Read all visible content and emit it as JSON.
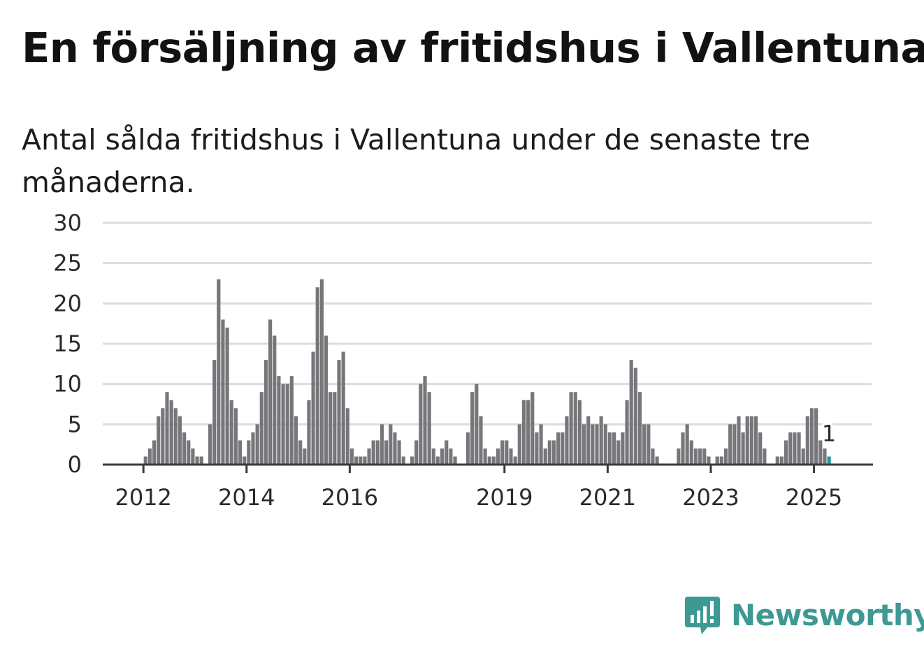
{
  "title": "En försäljning av fritidshus i Vallentuna",
  "subtitle": "Antal sålda fritidshus i Vallentuna under de senaste tre månaderna.",
  "brand": {
    "name": "Newsworthy",
    "icon": "newsworthy-logo-icon",
    "color": "#3d9994"
  },
  "chart_data": {
    "type": "bar",
    "title": "",
    "xlabel": "",
    "ylabel": "",
    "ylim": [
      0,
      30
    ],
    "yticks": [
      0,
      5,
      10,
      15,
      20,
      25,
      30
    ],
    "xticks": [
      "2012",
      "2014",
      "2016",
      "2019",
      "2021",
      "2023",
      "2025"
    ],
    "grid": true,
    "bar_color": "#77767a",
    "highlight_color": "#1f9a97",
    "annotation": {
      "text": "1",
      "target": "last-bar"
    },
    "series": [
      {
        "values": [
          0,
          0,
          0,
          0,
          0,
          0,
          0,
          0,
          0,
          1,
          2,
          3,
          6,
          7,
          9,
          8,
          7,
          6,
          4,
          3,
          2,
          1,
          1,
          0,
          5,
          13,
          23,
          18,
          17,
          8,
          7,
          3,
          1,
          3,
          4,
          5,
          9,
          13,
          18,
          16,
          11,
          10,
          10,
          11,
          6,
          3,
          2,
          8,
          14,
          22,
          23,
          16,
          9,
          9,
          13,
          14,
          7,
          2,
          1,
          1,
          1,
          2,
          3,
          3,
          5,
          3,
          5,
          4,
          3,
          1,
          0,
          1,
          3,
          10,
          11,
          9,
          2,
          1,
          2,
          3,
          2,
          1,
          0,
          0,
          4,
          9,
          10,
          6,
          2,
          1,
          1,
          2,
          3,
          3,
          2,
          1,
          5,
          8,
          8,
          9,
          4,
          5,
          2,
          3,
          3,
          4,
          4,
          6,
          9,
          9,
          8,
          5,
          6,
          5,
          5,
          6,
          5,
          4,
          4,
          3,
          4,
          8,
          13,
          12,
          9,
          5,
          5,
          2,
          1,
          0,
          0,
          0,
          0,
          2,
          4,
          5,
          3,
          2,
          2,
          2,
          1,
          0,
          1,
          1,
          2,
          5,
          5,
          6,
          4,
          6,
          6,
          6,
          4,
          2,
          0,
          0,
          1,
          1,
          3,
          4,
          4,
          4,
          2,
          6,
          7,
          7,
          3,
          2,
          1
        ]
      }
    ]
  }
}
